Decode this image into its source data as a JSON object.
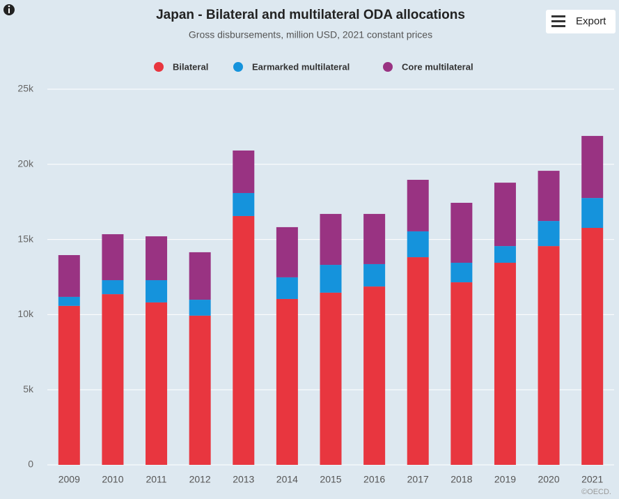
{
  "chart_data": {
    "type": "stacked_bar",
    "title": "Japan - Bilateral and multilateral ODA allocations",
    "subtitle": "Gross disbursements, million USD, 2021 constant prices",
    "export_label": "Export",
    "credits": "©OECD.",
    "categories": [
      "2009",
      "2010",
      "2011",
      "2012",
      "2013",
      "2014",
      "2015",
      "2016",
      "2017",
      "2018",
      "2019",
      "2020",
      "2021"
    ],
    "series": [
      {
        "name": "Bilateral",
        "color": "#e8363f",
        "values": [
          10580,
          11360,
          10810,
          9930,
          16560,
          11040,
          11460,
          11870,
          13820,
          12150,
          13450,
          14560,
          15770
        ]
      },
      {
        "name": "Earmarked multilateral",
        "color": "#1593dc",
        "values": [
          600,
          930,
          1480,
          1060,
          1530,
          1440,
          1850,
          1490,
          1720,
          1300,
          1110,
          1670,
          1990
        ]
      },
      {
        "name": "Core multilateral",
        "color": "#993382",
        "values": [
          2780,
          3060,
          2920,
          3160,
          2830,
          3340,
          3390,
          3340,
          3430,
          3990,
          4220,
          3340,
          4130
        ]
      }
    ],
    "ylim": [
      0,
      25000
    ],
    "yticks": [
      0,
      {
        "value": 5000,
        "label": "5k"
      },
      {
        "value": 10000,
        "label": "10k"
      },
      {
        "value": 15000,
        "label": "15k"
      },
      {
        "value": 20000,
        "label": "20k"
      },
      {
        "value": 25000,
        "label": "25k"
      }
    ],
    "grid": true,
    "legend": "top"
  }
}
